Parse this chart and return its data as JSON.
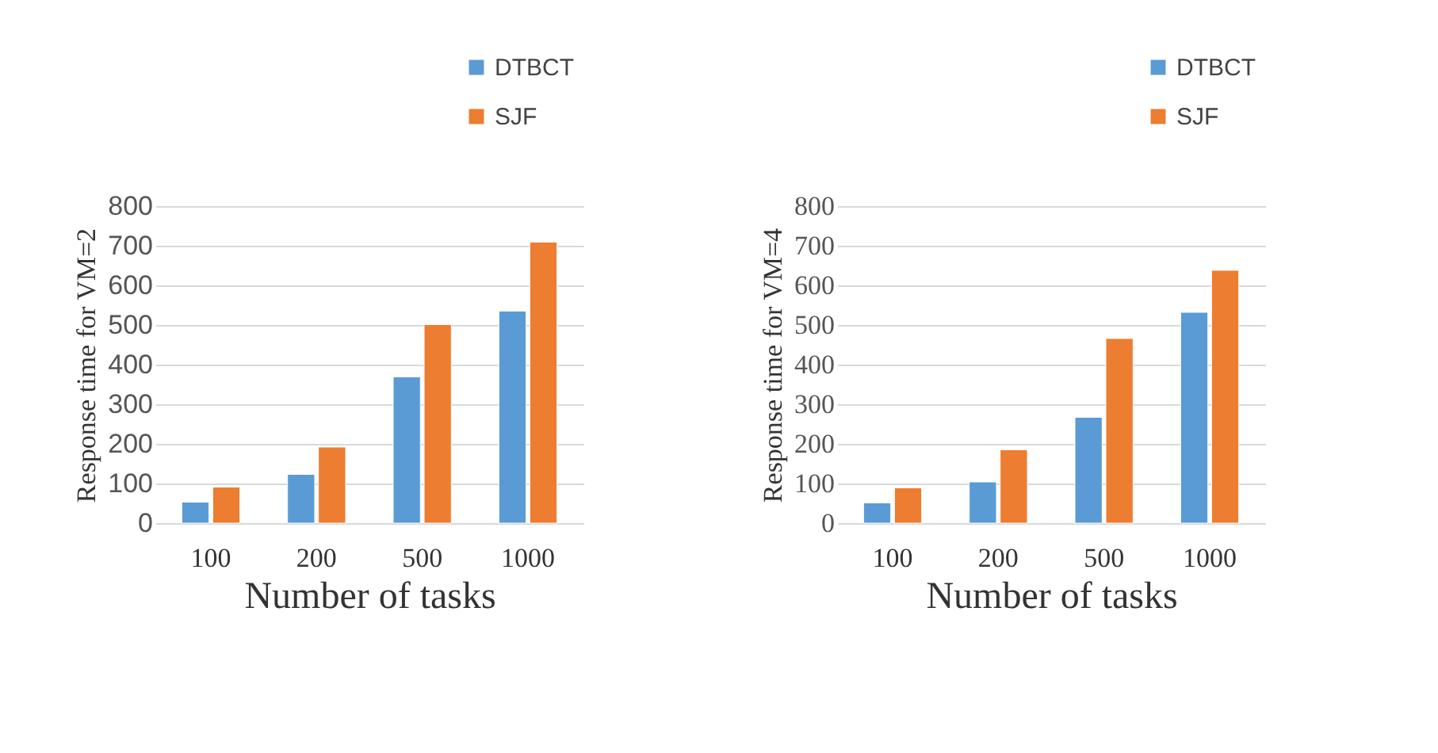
{
  "chart_data": [
    {
      "type": "bar",
      "categories": [
        "100",
        "200",
        "500",
        "1000"
      ],
      "xlabel": "Number of tasks",
      "ylabel": "Response time for VM=2",
      "ylim": [
        0,
        800
      ],
      "yticks": [
        0,
        100,
        200,
        300,
        400,
        500,
        600,
        700,
        800
      ],
      "grid": "y",
      "legend": "top right",
      "series": [
        {
          "name": "DTBCT",
          "color": "#5b9bd5",
          "values": [
            53,
            123,
            369,
            535
          ]
        },
        {
          "name": "SJF",
          "color": "#ed7d31",
          "values": [
            91,
            192,
            501,
            709
          ]
        }
      ]
    },
    {
      "type": "bar",
      "categories": [
        "100",
        "200",
        "500",
        "1000"
      ],
      "xlabel": "Number of tasks",
      "ylabel": "Response time for VM=4",
      "ylim": [
        0,
        800
      ],
      "yticks": [
        0,
        100,
        200,
        300,
        400,
        500,
        600,
        700,
        800
      ],
      "grid": "y",
      "legend": "top right",
      "series": [
        {
          "name": "DTBCT",
          "color": "#5b9bd5",
          "values": [
            51,
            104,
            267,
            532
          ]
        },
        {
          "name": "SJF",
          "color": "#ed7d31",
          "values": [
            89,
            185,
            466,
            638
          ]
        }
      ]
    }
  ]
}
